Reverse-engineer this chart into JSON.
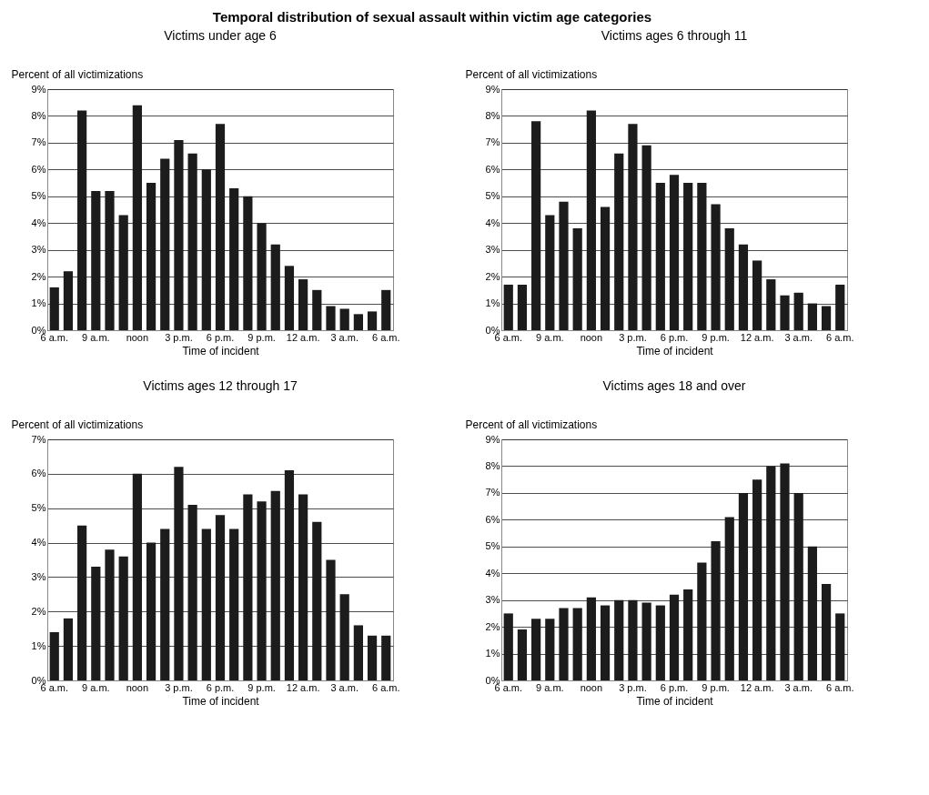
{
  "chart_data": [
    {
      "type": "bar",
      "title": "Victims under age 6",
      "xlabel": "Time of incident",
      "ylabel": "Percent of all victimizations",
      "annotations": [
        "Temporal distribution of sexual assault within victim age categories"
      ],
      "color": "#1c1c1c",
      "grid": "y",
      "categories": [
        "6 a.m.",
        null,
        null,
        "9 a.m.",
        null,
        null,
        "noon",
        null,
        null,
        "3 p.m.",
        null,
        null,
        "6 p.m.",
        null,
        null,
        "9 p.m.",
        null,
        null,
        "12 a.m.",
        null,
        null,
        "3 a.m.",
        null,
        null,
        "6 a.m."
      ],
      "values": [
        1.6,
        2.2,
        8.2,
        5.2,
        5.2,
        4.3,
        8.4,
        5.5,
        6.4,
        7.1,
        6.6,
        6.0,
        7.7,
        5.3,
        5.0,
        4.0,
        3.2,
        2.4,
        1.9,
        1.5,
        0.9,
        0.8,
        0.6,
        0.7,
        1.5
      ],
      "ylim": [
        0,
        9
      ],
      "yticks": [
        {
          "value": 0,
          "label": "0%"
        },
        {
          "value": 1,
          "label": "1%"
        },
        {
          "value": 2,
          "label": "2%"
        },
        {
          "value": 3,
          "label": "3%"
        },
        {
          "value": 4,
          "label": "4%"
        },
        {
          "value": 5,
          "label": "5%"
        },
        {
          "value": 6,
          "label": "6%"
        },
        {
          "value": 7,
          "label": "7%"
        },
        {
          "value": 8,
          "label": "8%"
        },
        {
          "value": 9,
          "label": "9%"
        }
      ]
    },
    {
      "type": "bar",
      "title": "Victims ages 6 through 11",
      "xlabel": "Time of incident",
      "ylabel": "Percent of all victimizations",
      "color": "#1c1c1c",
      "grid": "y",
      "categories": [
        "6 a.m.",
        null,
        null,
        "9 a.m.",
        null,
        null,
        "noon",
        null,
        null,
        "3 p.m.",
        null,
        null,
        "6 p.m.",
        null,
        null,
        "9 p.m.",
        null,
        null,
        "12 a.m.",
        null,
        null,
        "3 a.m.",
        null,
        null,
        "6 a.m."
      ],
      "values": [
        1.7,
        1.7,
        7.8,
        4.3,
        4.8,
        3.8,
        8.2,
        4.6,
        6.6,
        7.7,
        6.9,
        5.5,
        5.8,
        5.5,
        5.5,
        4.7,
        3.8,
        3.2,
        2.6,
        1.9,
        1.3,
        1.4,
        1.0,
        0.9,
        1.7
      ],
      "ylim": [
        0,
        9
      ],
      "yticks": [
        {
          "value": 0,
          "label": "0%"
        },
        {
          "value": 1,
          "label": "1%"
        },
        {
          "value": 2,
          "label": "2%"
        },
        {
          "value": 3,
          "label": "3%"
        },
        {
          "value": 4,
          "label": "4%"
        },
        {
          "value": 5,
          "label": "5%"
        },
        {
          "value": 6,
          "label": "6%"
        },
        {
          "value": 7,
          "label": "7%"
        },
        {
          "value": 8,
          "label": "8%"
        },
        {
          "value": 9,
          "label": "9%"
        }
      ]
    },
    {
      "type": "bar",
      "title": "Victims ages 12 through 17",
      "xlabel": "Time of incident",
      "ylabel": "Percent of all victimizations",
      "color": "#1c1c1c",
      "grid": "y",
      "categories": [
        "6 a.m.",
        null,
        null,
        "9 a.m.",
        null,
        null,
        "noon",
        null,
        null,
        "3 p.m.",
        null,
        null,
        "6 p.m.",
        null,
        null,
        "9 p.m.",
        null,
        null,
        "12 a.m.",
        null,
        null,
        "3 a.m.",
        null,
        null,
        "6 a.m."
      ],
      "values": [
        1.4,
        1.8,
        4.5,
        3.3,
        3.8,
        3.6,
        6.0,
        4.0,
        4.4,
        6.2,
        5.1,
        4.4,
        4.8,
        4.4,
        5.4,
        5.2,
        5.5,
        6.1,
        5.4,
        4.6,
        3.5,
        2.5,
        1.6,
        1.3,
        1.3
      ],
      "ylim": [
        0,
        7
      ],
      "yticks": [
        {
          "value": 0,
          "label": "0%"
        },
        {
          "value": 1,
          "label": "1%"
        },
        {
          "value": 2,
          "label": "2%"
        },
        {
          "value": 3,
          "label": "3%"
        },
        {
          "value": 4,
          "label": "4%"
        },
        {
          "value": 5,
          "label": "5%"
        },
        {
          "value": 6,
          "label": "6%"
        },
        {
          "value": 7,
          "label": "7%"
        }
      ]
    },
    {
      "type": "bar",
      "title": "Victims ages 18 and over",
      "xlabel": "Time of incident",
      "ylabel": "Percent of all victimizations",
      "color": "#1c1c1c",
      "grid": "y",
      "categories": [
        "6 a.m.",
        null,
        null,
        "9 a.m.",
        null,
        null,
        "noon",
        null,
        null,
        "3 p.m.",
        null,
        null,
        "6 p.m.",
        null,
        null,
        "9 p.m.",
        null,
        null,
        "12 a.m.",
        null,
        null,
        "3 a.m.",
        null,
        null,
        "6 a.m."
      ],
      "values": [
        2.5,
        1.9,
        2.3,
        2.3,
        2.7,
        2.7,
        3.1,
        2.8,
        3.0,
        3.0,
        2.9,
        2.8,
        3.2,
        3.4,
        4.4,
        5.2,
        6.1,
        7.0,
        7.5,
        8.0,
        8.1,
        7.0,
        5.0,
        3.6,
        2.5
      ],
      "ylim": [
        0,
        9
      ],
      "yticks": [
        {
          "value": 0,
          "label": "0%"
        },
        {
          "value": 1,
          "label": "1%"
        },
        {
          "value": 2,
          "label": "2%"
        },
        {
          "value": 3,
          "label": "3%"
        },
        {
          "value": 4,
          "label": "4%"
        },
        {
          "value": 5,
          "label": "5%"
        },
        {
          "value": 6,
          "label": "6%"
        },
        {
          "value": 7,
          "label": "7%"
        },
        {
          "value": 8,
          "label": "8%"
        },
        {
          "value": 9,
          "label": "9%"
        }
      ]
    }
  ]
}
